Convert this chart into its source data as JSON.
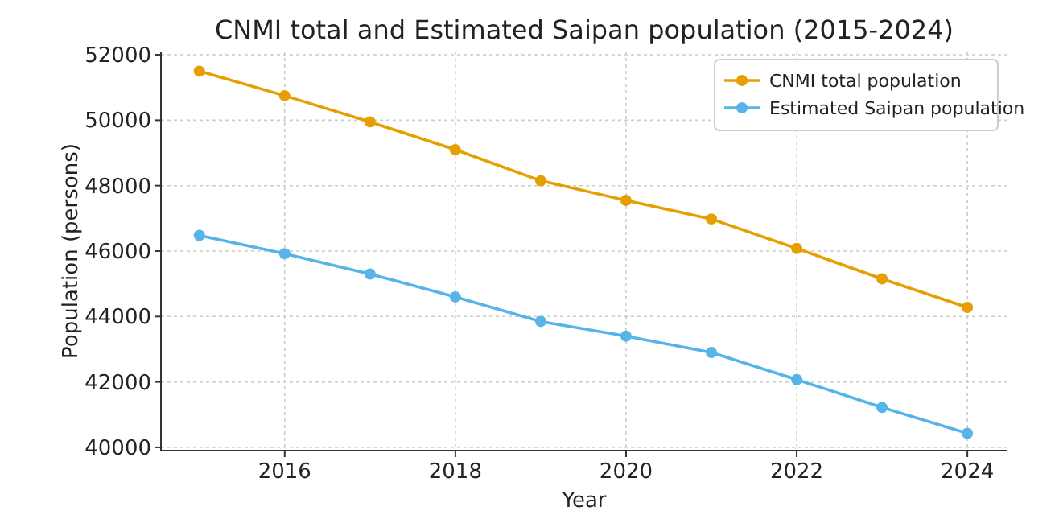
{
  "chart_data": {
    "type": "line",
    "title": "CNMI total and Estimated Saipan population (2015-2024)",
    "xlabel": "Year",
    "ylabel": "Population (persons)",
    "x": [
      2015,
      2016,
      2017,
      2018,
      2019,
      2020,
      2021,
      2022,
      2023,
      2024
    ],
    "series": [
      {
        "name": "CNMI total population",
        "color": "#e69f00",
        "values": [
          51500,
          50750,
          49950,
          49100,
          48150,
          47550,
          46980,
          46080,
          45150,
          44280
        ]
      },
      {
        "name": "Estimated Saipan population",
        "color": "#56b4e9",
        "values": [
          46480,
          45920,
          45300,
          44600,
          43850,
          43400,
          42900,
          42070,
          41220,
          40430
        ]
      }
    ],
    "xlim": [
      2014.55,
      2024.47
    ],
    "xticks": [
      2016,
      2018,
      2020,
      2022,
      2024
    ],
    "ylim": [
      39900,
      52100
    ],
    "yticks": [
      40000,
      42000,
      44000,
      46000,
      48000,
      50000,
      52000
    ],
    "grid": true,
    "legend": "top right",
    "marker": "circle",
    "line_style": "solid"
  }
}
